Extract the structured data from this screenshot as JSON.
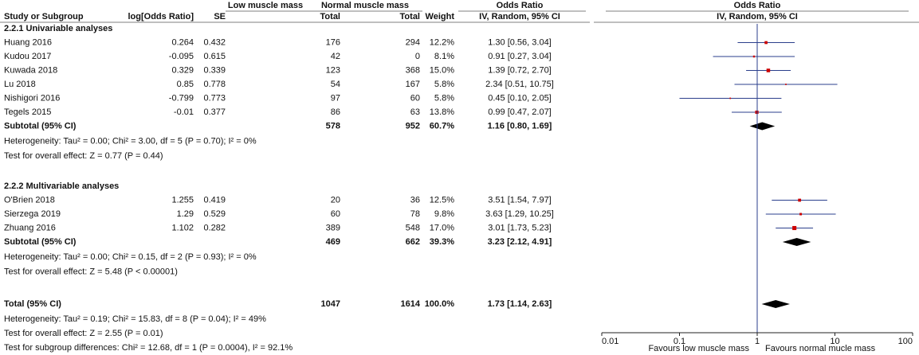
{
  "chart_data": {
    "type": "forest",
    "header": {
      "top": [
        "Low muscle mass",
        "Normal muscle mass",
        "Odds Ratio",
        "Odds Ratio"
      ],
      "columns": [
        "Study or Subgroup",
        "log[Odds Ratio]",
        "SE",
        "Total",
        "Total",
        "Weight",
        "IV, Random, 95% CI",
        "IV, Random, 95% CI"
      ]
    },
    "groups": [
      {
        "title": "2.2.1 Univariable analyses",
        "studies": [
          {
            "name": "Huang 2016",
            "log_or": 0.264,
            "se": 0.432,
            "low_total": 176,
            "normal_total": 294,
            "weight": 12.2,
            "weight_label": "12.2%",
            "or": 1.3,
            "ci_low": 0.56,
            "ci_high": 3.04,
            "or_text": "1.30 [0.56, 3.04]"
          },
          {
            "name": "Kudou 2017",
            "log_or": -0.095,
            "se": 0.615,
            "low_total": 42,
            "normal_total": 0,
            "weight": 8.1,
            "weight_label": "8.1%",
            "or": 0.91,
            "ci_low": 0.27,
            "ci_high": 3.04,
            "or_text": "0.91 [0.27, 3.04]"
          },
          {
            "name": "Kuwada 2018",
            "log_or": 0.329,
            "se": 0.339,
            "low_total": 123,
            "normal_total": 368,
            "weight": 15.0,
            "weight_label": "15.0%",
            "or": 1.39,
            "ci_low": 0.72,
            "ci_high": 2.7,
            "or_text": "1.39 [0.72, 2.70]"
          },
          {
            "name": "Lu 2018",
            "log_or": 0.85,
            "se": 0.778,
            "low_total": 54,
            "normal_total": 167,
            "weight": 5.8,
            "weight_label": "5.8%",
            "or": 2.34,
            "ci_low": 0.51,
            "ci_high": 10.75,
            "or_text": "2.34 [0.51, 10.75]"
          },
          {
            "name": "Nishigori 2016",
            "log_or": -0.799,
            "se": 0.773,
            "low_total": 97,
            "normal_total": 60,
            "weight": 5.8,
            "weight_label": "5.8%",
            "or": 0.45,
            "ci_low": 0.1,
            "ci_high": 2.05,
            "or_text": "0.45 [0.10, 2.05]"
          },
          {
            "name": "Tegels 2015",
            "log_or": -0.01,
            "se": 0.377,
            "low_total": 86,
            "normal_total": 63,
            "weight": 13.8,
            "weight_label": "13.8%",
            "or": 0.99,
            "ci_low": 0.47,
            "ci_high": 2.07,
            "or_text": "0.99 [0.47, 2.07]"
          }
        ],
        "subtotal": {
          "name": "Subtotal (95% CI)",
          "low_total": 578,
          "normal_total": 952,
          "weight": 60.7,
          "weight_label": "60.7%",
          "or": 1.16,
          "ci_low": 0.8,
          "ci_high": 1.69,
          "or_text": "1.16 [0.80, 1.69]"
        },
        "heterogeneity": "Heterogeneity: Tau² = 0.00; Chi² = 3.00, df = 5 (P = 0.70); I² = 0%",
        "overall_test": "Test for overall effect: Z = 0.77 (P = 0.44)"
      },
      {
        "title": "2.2.2 Multivariable analyses",
        "studies": [
          {
            "name": "O'Brien 2018",
            "log_or": 1.255,
            "se": 0.419,
            "low_total": 20,
            "normal_total": 36,
            "weight": 12.5,
            "weight_label": "12.5%",
            "or": 3.51,
            "ci_low": 1.54,
            "ci_high": 7.97,
            "or_text": "3.51 [1.54, 7.97]"
          },
          {
            "name": "Sierzega 2019",
            "log_or": 1.29,
            "se": 0.529,
            "low_total": 60,
            "normal_total": 78,
            "weight": 9.8,
            "weight_label": "9.8%",
            "or": 3.63,
            "ci_low": 1.29,
            "ci_high": 10.25,
            "or_text": "3.63 [1.29, 10.25]"
          },
          {
            "name": "Zhuang 2016",
            "log_or": 1.102,
            "se": 0.282,
            "low_total": 389,
            "normal_total": 548,
            "weight": 17.0,
            "weight_label": "17.0%",
            "or": 3.01,
            "ci_low": 1.73,
            "ci_high": 5.23,
            "or_text": "3.01 [1.73, 5.23]"
          }
        ],
        "subtotal": {
          "name": "Subtotal (95% CI)",
          "low_total": 469,
          "normal_total": 662,
          "weight": 39.3,
          "weight_label": "39.3%",
          "or": 3.23,
          "ci_low": 2.12,
          "ci_high": 4.91,
          "or_text": "3.23 [2.12, 4.91]"
        },
        "heterogeneity": "Heterogeneity: Tau² = 0.00; Chi² = 0.15, df = 2 (P = 0.93); I² = 0%",
        "overall_test": "Test for overall effect: Z = 5.48 (P < 0.00001)"
      }
    ],
    "total": {
      "name": "Total (95% CI)",
      "low_total": 1047,
      "normal_total": 1614,
      "weight": 100.0,
      "weight_label": "100.0%",
      "or": 1.73,
      "ci_low": 1.14,
      "ci_high": 2.63,
      "or_text": "1.73 [1.14, 2.63]"
    },
    "total_heterogeneity": "Heterogeneity: Tau² = 0.19; Chi² = 15.83, df = 8 (P = 0.04); I² = 49%",
    "total_test": "Test for overall effect: Z = 2.55 (P = 0.01)",
    "subgroup_test": "Test for subgroup differences: Chi² = 12.68, df = 1 (P = 0.0004), I² = 92.1%",
    "xlim": [
      0.01,
      100
    ],
    "xticks": [
      0.01,
      0.1,
      1,
      10,
      100
    ],
    "log_x": true,
    "favours": [
      "Favours low muscle mass",
      "Favours normal mucle mass"
    ],
    "marker_color": "#cc0000",
    "ci_color": "#2b3f8c",
    "diamond_color": "#000000"
  }
}
